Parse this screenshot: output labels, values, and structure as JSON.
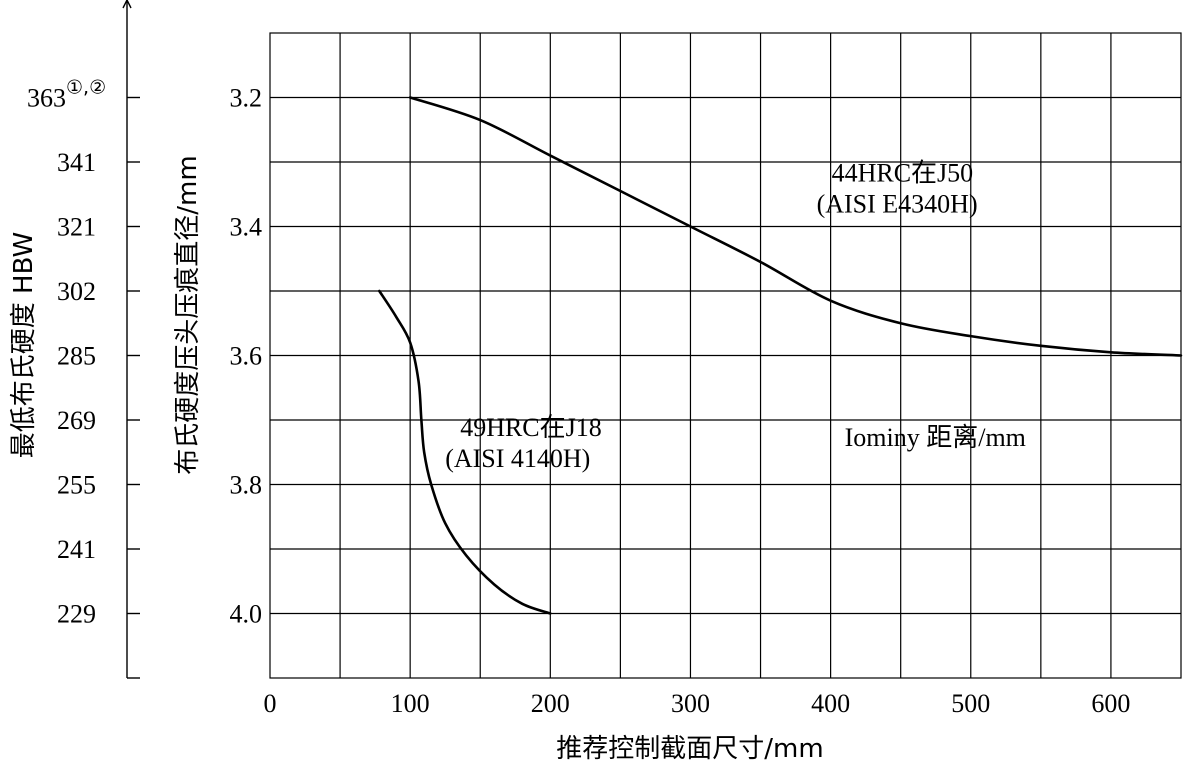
{
  "chart_data": {
    "type": "line",
    "xlabel": "推荐控制截面尺寸/mm",
    "ylabel": "布氏硬度压头压痕直径/mm",
    "ylabel2": "最低布氏硬度 HBW",
    "xlim": [
      0,
      650
    ],
    "ylim": [
      3.1,
      4.1
    ],
    "y_inverted": true,
    "grid": true,
    "x_ticks": [
      "0",
      "100",
      "200",
      "300",
      "400",
      "500",
      "600"
    ],
    "x_tick_values": [
      0,
      100,
      200,
      300,
      400,
      500,
      600
    ],
    "y_ticks": [
      "3.2",
      "3.4",
      "3.6",
      "3.8",
      "4.0"
    ],
    "y_tick_values": [
      3.2,
      3.4,
      3.6,
      3.8,
      4.0
    ],
    "hb_ticks": [
      "363",
      "341",
      "321",
      "302",
      "285",
      "269",
      "255",
      "241",
      "229"
    ],
    "hb_tick_positions": [
      3.2,
      3.3,
      3.4,
      3.5,
      3.6,
      3.7,
      3.8,
      3.9,
      4.0
    ],
    "hb_top_superscript": "①,②",
    "series": [
      {
        "label_line1": "44HRC在J50",
        "label_line2": "(AISI  E4340H)",
        "label_pos": [
          390,
          3.33
        ],
        "points": [
          [
            100,
            3.2
          ],
          [
            150,
            3.235
          ],
          [
            200,
            3.29
          ],
          [
            250,
            3.345
          ],
          [
            300,
            3.4
          ],
          [
            350,
            3.455
          ],
          [
            400,
            3.515
          ],
          [
            450,
            3.55
          ],
          [
            500,
            3.57
          ],
          [
            550,
            3.585
          ],
          [
            600,
            3.595
          ],
          [
            650,
            3.6
          ]
        ]
      },
      {
        "label_line1": "49HRC在J18",
        "label_line2": "(AISI  4140H)",
        "label_pos": [
          125,
          3.725
        ],
        "points": [
          [
            78,
            3.5
          ],
          [
            90,
            3.54
          ],
          [
            100,
            3.58
          ],
          [
            106,
            3.64
          ],
          [
            108,
            3.7
          ],
          [
            110,
            3.75
          ],
          [
            115,
            3.8
          ],
          [
            125,
            3.86
          ],
          [
            140,
            3.91
          ],
          [
            160,
            3.955
          ],
          [
            180,
            3.985
          ],
          [
            200,
            4.0
          ]
        ]
      }
    ],
    "annotation": "Iominy 距离/mm",
    "annotation_pos": [
      410,
      3.74
    ]
  }
}
